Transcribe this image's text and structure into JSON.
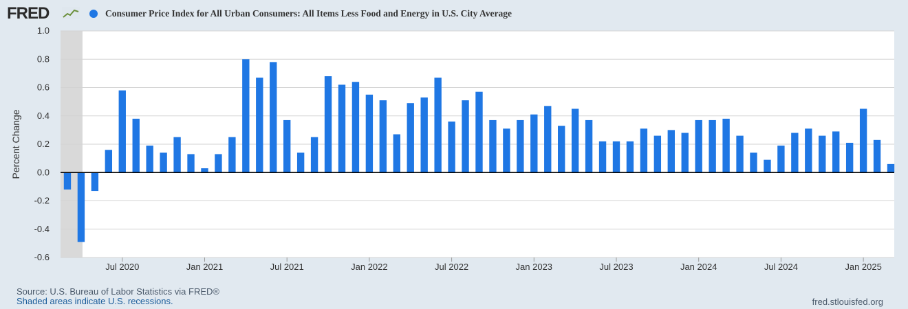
{
  "header": {
    "logo_text": "FRED",
    "series_title": "Consumer Price Index for All Urban Consumers: All Items Less Food and Energy in U.S. City Average",
    "series_color": "#1f77e4"
  },
  "footer": {
    "source": "U.S. Bureau of Labor Statistics via FRED®",
    "source_prefix": "Source: ",
    "recession_note": "Shaded areas indicate U.S. recessions.",
    "site": "fred.stlouisfed.org"
  },
  "chart_data": {
    "type": "bar",
    "ylabel": "Percent Change",
    "ylim": [
      -0.6,
      1.0
    ],
    "yticks": [
      "1.0",
      "0.8",
      "0.6",
      "0.4",
      "0.2",
      "0.0",
      "-0.2",
      "-0.4",
      "-0.6"
    ],
    "ytick_values": [
      1.0,
      0.8,
      0.6,
      0.4,
      0.2,
      0.0,
      -0.2,
      -0.4,
      -0.6
    ],
    "grid": true,
    "bar_color": "#1f77e4",
    "recession_color": "#d9d9d9",
    "recession_start": "2020-03",
    "recession_end": "2020-04",
    "x_start": "2020-03",
    "x_end": "2025-03",
    "xtick_labels": [
      "Jul 2020",
      "Jan 2021",
      "Jul 2021",
      "Jan 2022",
      "Jul 2022",
      "Jan 2023",
      "Jul 2023",
      "Jan 2024",
      "Jul 2024",
      "Jan 2025"
    ],
    "xtick_months": [
      "2020-07",
      "2021-01",
      "2021-07",
      "2022-01",
      "2022-07",
      "2023-01",
      "2023-07",
      "2024-01",
      "2024-07",
      "2025-01"
    ],
    "values": [
      -0.12,
      -0.49,
      -0.13,
      0.16,
      0.58,
      0.38,
      0.19,
      0.14,
      0.25,
      0.13,
      0.03,
      0.13,
      0.25,
      0.8,
      0.67,
      0.78,
      0.37,
      0.14,
      0.25,
      0.68,
      0.62,
      0.64,
      0.55,
      0.51,
      0.27,
      0.49,
      0.53,
      0.67,
      0.36,
      0.51,
      0.57,
      0.37,
      0.31,
      0.37,
      0.41,
      0.47,
      0.33,
      0.45,
      0.37,
      0.22,
      0.22,
      0.22,
      0.31,
      0.26,
      0.3,
      0.28,
      0.37,
      0.37,
      0.38,
      0.26,
      0.14,
      0.09,
      0.19,
      0.28,
      0.31,
      0.26,
      0.29,
      0.21,
      0.45,
      0.23,
      0.06
    ]
  }
}
